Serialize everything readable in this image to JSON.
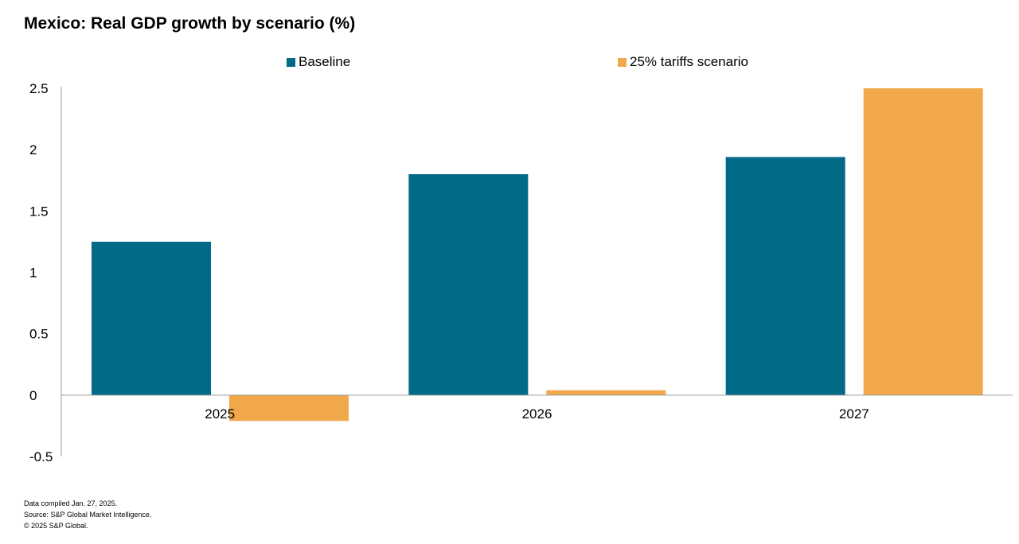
{
  "title": "Mexico: Real GDP growth by scenario (%)",
  "colors": {
    "baseline": "#006a87",
    "tariffs": "#f0a84b",
    "axis": "#9a9a9a"
  },
  "chart_data": {
    "type": "bar",
    "title": "Mexico: Real GDP growth by scenario (%)",
    "xlabel": "",
    "ylabel": "",
    "categories": [
      "2025",
      "2026",
      "2027"
    ],
    "series": [
      {
        "name": "Baseline",
        "values": [
          1.25,
          1.8,
          1.94
        ],
        "color": "#006a87"
      },
      {
        "name": "25% tariffs scenario",
        "values": [
          -0.21,
          0.04,
          2.5
        ],
        "color": "#f0a84b"
      }
    ],
    "ylim": [
      -0.5,
      2.5
    ],
    "yticks": [
      "2.5",
      "2",
      "1.5",
      "1",
      "0.5",
      "0",
      "-0.5"
    ],
    "ytick_values": [
      2.5,
      2,
      1.5,
      1,
      0.5,
      0,
      -0.5
    ],
    "grid": false,
    "legend_position": "top"
  },
  "footnotes": {
    "line1": "Data compiled Jan. 27, 2025.",
    "line2": "Source: S&P Global Market Intelligence.",
    "line3": "© 2025 S&P Global."
  }
}
